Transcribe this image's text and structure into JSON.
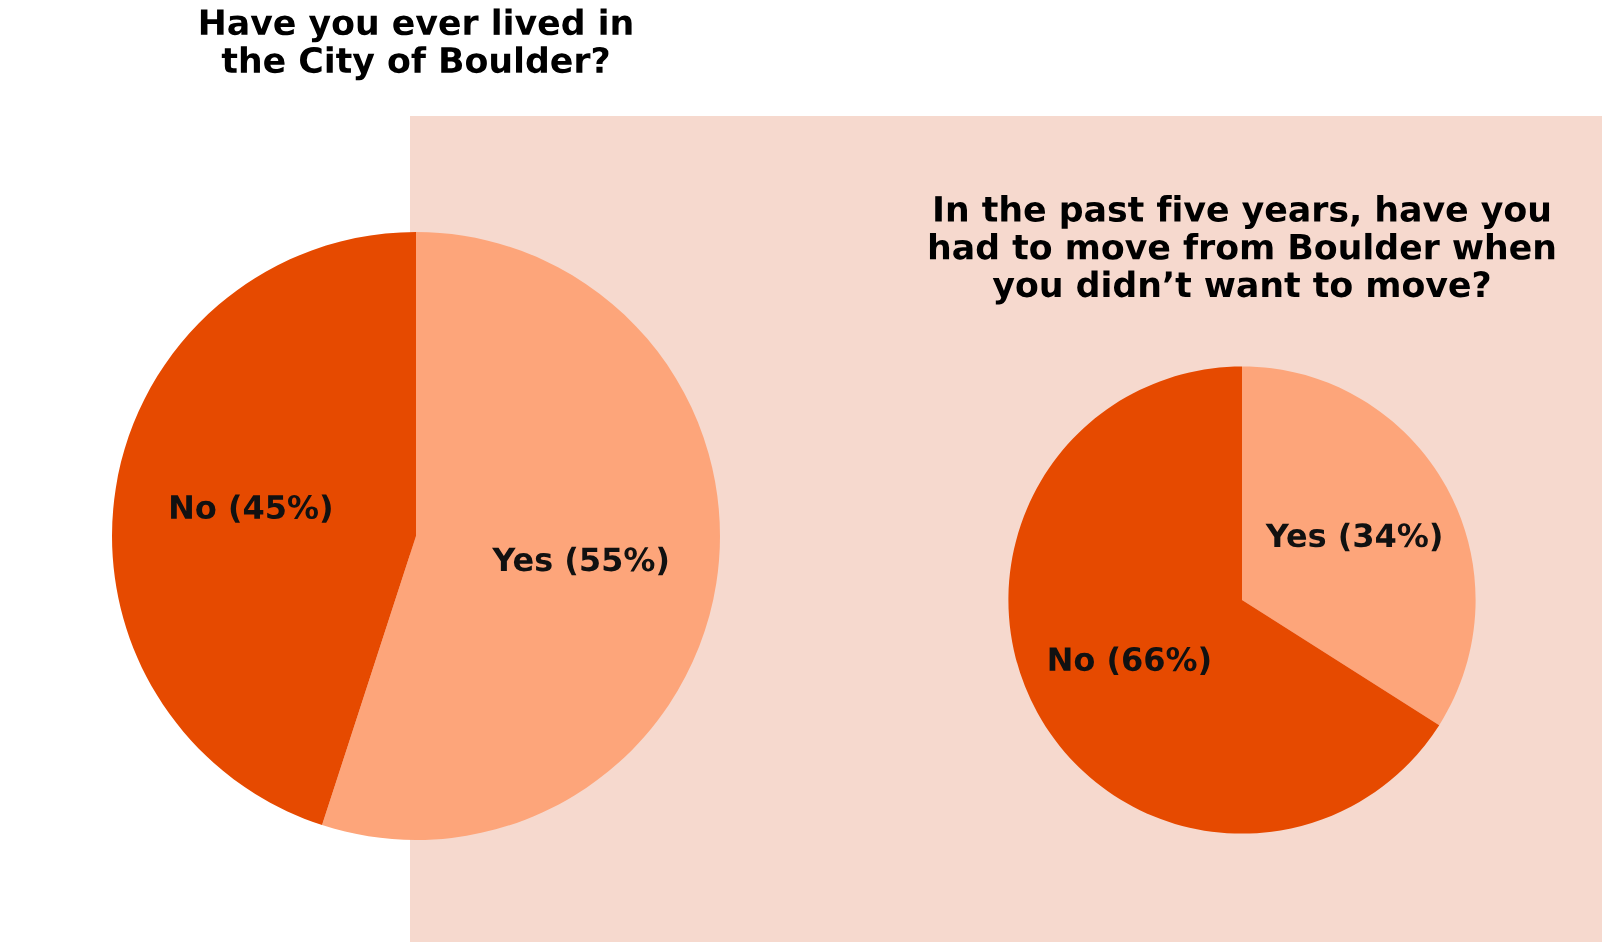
{
  "chart_data": [
    {
      "type": "pie",
      "title": "Have you ever lived in\nthe City of Boulder?",
      "categories": [
        "Yes",
        "No"
      ],
      "values": [
        55,
        45
      ],
      "colors": [
        "#fda57a",
        "#e64a00"
      ],
      "value_labels": [
        "(55%)",
        "(45%)"
      ]
    },
    {
      "type": "pie",
      "title": "In the past five years, have you\nhad to move from Boulder when\nyou didn’t want to move?",
      "categories": [
        "Yes",
        "No"
      ],
      "values": [
        34,
        66
      ],
      "colors": [
        "#fda57a",
        "#e64a00"
      ],
      "value_labels": [
        "(34%)",
        "(66%)"
      ]
    }
  ]
}
